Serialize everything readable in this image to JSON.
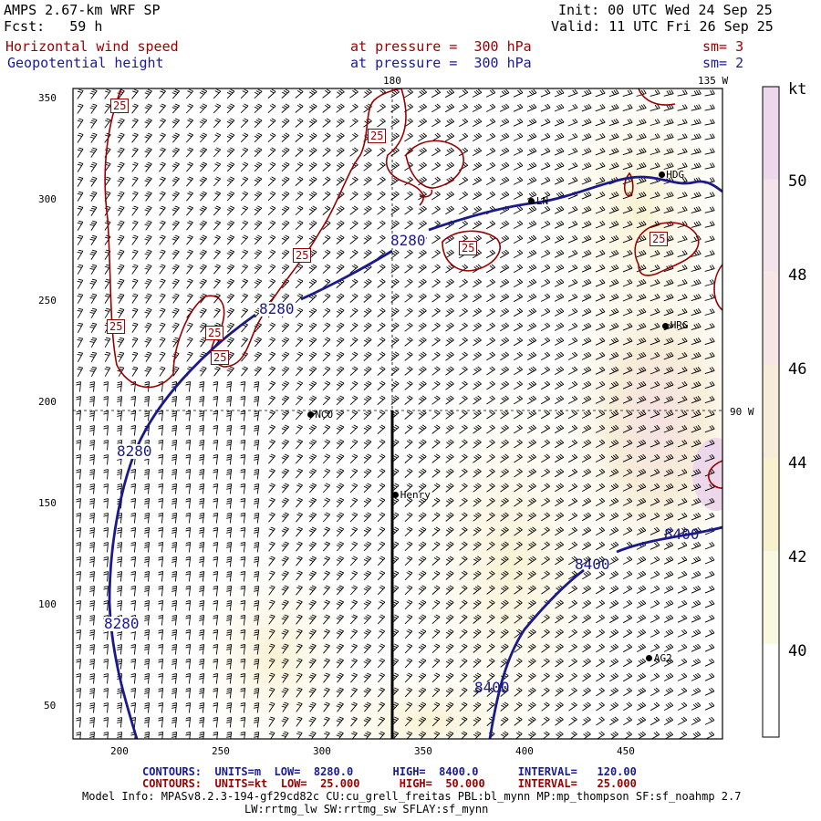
{
  "header": {
    "model_title": "AMPS 2.67-km WRF SP",
    "forecast": "Fcst:   59 h",
    "init": "Init: 00 UTC Wed 24 Sep 25",
    "valid": "Valid: 11 UTC Fri 26 Sep 25",
    "field1_name": "Horizontal wind speed",
    "field1_level": "at pressure =  300 hPa",
    "field1_sm": "sm= 3",
    "field2_name": "Geopotential height",
    "field2_level": "at pressure =  300 hPa",
    "field2_sm": "sm= 2"
  },
  "map": {
    "lon_labels": [
      "180",
      "135 W",
      "90 W"
    ],
    "x_ticks": [
      200,
      250,
      300,
      350,
      400,
      450
    ],
    "y_ticks": [
      50,
      100,
      150,
      200,
      250,
      300,
      350
    ],
    "x_range": [
      176,
      496
    ],
    "y_range": [
      33,
      356
    ],
    "stations": [
      {
        "name": "NCO",
        "x": 293,
        "y": 194
      },
      {
        "name": "Henry",
        "x": 335,
        "y": 154
      },
      {
        "name": "HDG",
        "x": 466,
        "y": 313
      },
      {
        "name": "LN",
        "x": 402,
        "y": 300
      },
      {
        "name": "HRG",
        "x": 468,
        "y": 238
      },
      {
        "name": "AG2",
        "x": 460,
        "y": 73
      }
    ],
    "height_labels": [
      "8280",
      "8280",
      "8280",
      "8280",
      "8400",
      "8400",
      "8400"
    ],
    "speed_labels": [
      "25",
      "25",
      "25",
      "25",
      "25",
      "25",
      "25",
      "25"
    ]
  },
  "colorbar": {
    "unit": "kt",
    "labels": [
      "50",
      "48",
      "46",
      "44",
      "42",
      "40"
    ],
    "colors": [
      "#ecd8ea",
      "#f3e4ec",
      "#f6e6e6",
      "#f7ecd9",
      "#f7f1cf",
      "#fbf8e1",
      "#ffffff"
    ]
  },
  "footer": {
    "contours_height": "CONTOURS:  UNITS=m  LOW=  8280.0      HIGH=  8400.0      INTERVAL=   120.00",
    "contours_speed": "CONTOURS:  UNITS=kt  LOW=  25.000      HIGH=  50.000     INTERVAL=   25.000",
    "model_info_1": "Model Info: MPASv8.2.3-194-gf29cd82c CU:cu_grell_freitas PBL:bl_mynn MP:mp_thompson SF:sf_noahmp 2.7",
    "model_info_2": "LW:rrtmg_lw SW:rrtmg_sw SFLAY:sf_mynn"
  }
}
